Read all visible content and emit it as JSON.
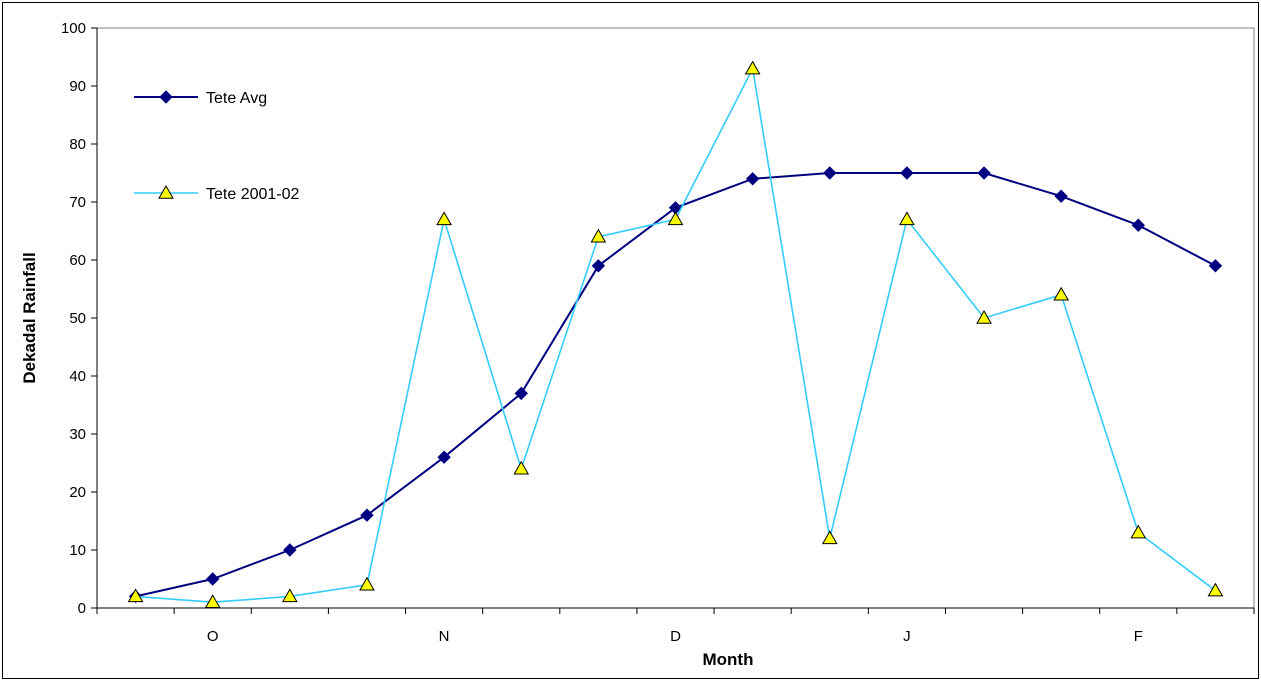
{
  "chart_data": {
    "type": "line",
    "title": "",
    "xlabel": "Month",
    "ylabel": "Dekadal Rainfall",
    "ylim": [
      0,
      100
    ],
    "yticks": [
      0,
      10,
      20,
      30,
      40,
      50,
      60,
      70,
      80,
      90,
      100
    ],
    "x": [
      1,
      2,
      3,
      4,
      5,
      6,
      7,
      8,
      9,
      10,
      11,
      12,
      13,
      14,
      15
    ],
    "month_labels": [
      {
        "label": "O",
        "center": 2
      },
      {
        "label": "N",
        "center": 5
      },
      {
        "label": "D",
        "center": 8
      },
      {
        "label": "J",
        "center": 11
      },
      {
        "label": "F",
        "center": 14
      }
    ],
    "grid": false,
    "legend": {
      "placement": "top-left"
    },
    "series": [
      {
        "name": "Tete Avg",
        "color": "#000080",
        "marker": "diamond",
        "values": [
          2,
          5,
          10,
          16,
          26,
          37,
          59,
          69,
          74,
          75,
          75,
          75,
          71,
          66,
          59
        ]
      },
      {
        "name": "Tete 2001-02",
        "color": "#33CCFF",
        "marker": "triangle",
        "marker_fill": "#FFFF00",
        "values": [
          2,
          1,
          2,
          4,
          67,
          24,
          64,
          67,
          93,
          12,
          67,
          50,
          54,
          13,
          3
        ]
      }
    ]
  }
}
